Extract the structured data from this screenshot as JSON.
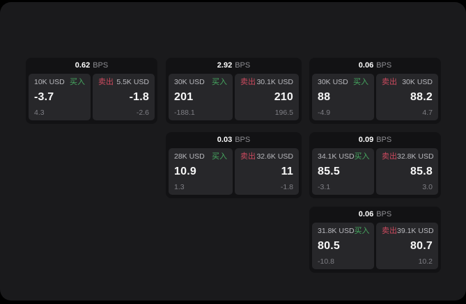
{
  "labels": {
    "buy": "买入",
    "sell": "卖出",
    "bps_unit": "BPS"
  },
  "colors": {
    "background": "#000000",
    "window_bg": "#1a1a1c",
    "card_bg": "#121214",
    "panel_bg": "#27272a",
    "buy_green": "#46a860",
    "sell_red": "#cc4a5e",
    "value_white": "#f7f7f7",
    "muted_gray": "#7f7f85"
  },
  "cards": [
    {
      "bps": "0.62",
      "buy": {
        "amount": "10K USD",
        "value": "-3.7",
        "change": "4.3"
      },
      "sell": {
        "amount": "5.5K USD",
        "value": "-1.8",
        "change": "-2.6"
      }
    },
    {
      "bps": "2.92",
      "buy": {
        "amount": "30K USD",
        "value": "201",
        "change": "-188.1"
      },
      "sell": {
        "amount": "30.1K USD",
        "value": "210",
        "change": "196.5"
      }
    },
    {
      "bps": "0.06",
      "buy": {
        "amount": "30K USD",
        "value": "88",
        "change": "-4.9"
      },
      "sell": {
        "amount": "30K USD",
        "value": "88.2",
        "change": "4.7"
      }
    },
    {
      "bps": "0.03",
      "buy": {
        "amount": "28K USD",
        "value": "10.9",
        "change": "1.3"
      },
      "sell": {
        "amount": "32.6K USD",
        "value": "11",
        "change": "-1.8"
      }
    },
    {
      "bps": "0.09",
      "buy": {
        "amount": "34.1K USD",
        "value": "85.5",
        "change": "-3.1"
      },
      "sell": {
        "amount": "32.8K USD",
        "value": "85.8",
        "change": "3.0"
      }
    },
    {
      "bps": "0.06",
      "buy": {
        "amount": "31.8K USD",
        "value": "80.5",
        "change": "-10.8"
      },
      "sell": {
        "amount": "39.1K USD",
        "value": "80.7",
        "change": "10.2"
      }
    }
  ]
}
